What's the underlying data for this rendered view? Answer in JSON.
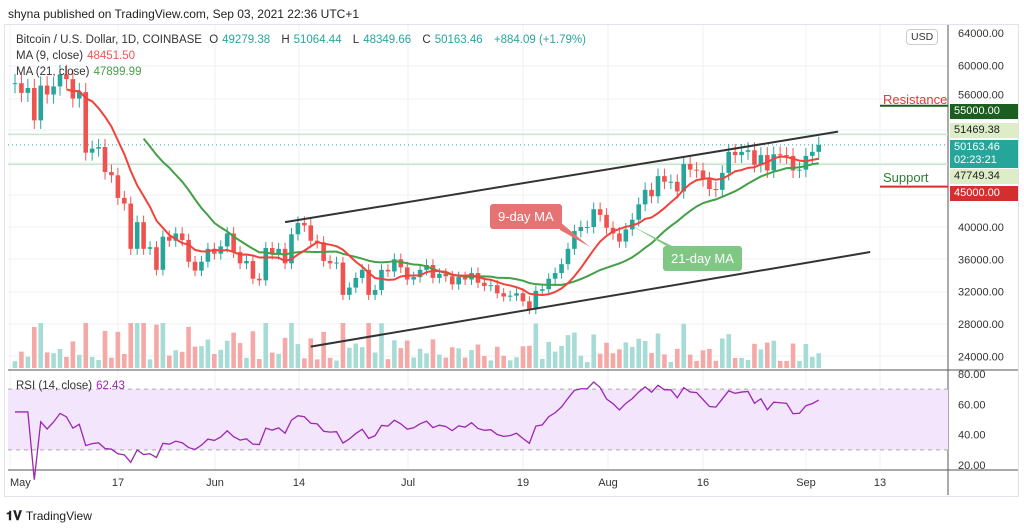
{
  "header": {
    "published": "shyna published on TradingView.com, Sep 03, 2021 22:36 UTC+1"
  },
  "legend": {
    "symbol": "Bitcoin / U.S. Dollar, 1D, COINBASE",
    "o_label": "O",
    "o": "49279.38",
    "h_label": "H",
    "h": "51064.44",
    "l_label": "L",
    "l": "48349.66",
    "c_label": "C",
    "c": "50163.46",
    "change": "+884.09 (+1.79%)",
    "ma9_label": "MA (9, close)",
    "ma9": "48451.50",
    "ma21_label": "MA (21, close)",
    "ma21": "47899.99",
    "rsi_label": "RSI (14, close)",
    "rsi": "62.43"
  },
  "price_axis": {
    "currency": "USD",
    "ticks": [
      "64000.00",
      "60000.00",
      "56000.00",
      "40000.00",
      "36000.00",
      "32000.00",
      "28000.00",
      "24000.00"
    ],
    "tick_values": [
      64000,
      60000,
      56000,
      40000,
      36000,
      32000,
      28000,
      24000
    ],
    "labels": {
      "resistance_level": "55000.00",
      "high_line": "51469.38",
      "last": "50163.46",
      "countdown": "02:23:21",
      "low_line": "47749.34",
      "support_level": "45000.00"
    }
  },
  "rsi_axis": {
    "ticks": [
      "80.00",
      "60.00",
      "40.00",
      "20.00"
    ]
  },
  "time_axis": [
    "May",
    "17",
    "Jun",
    "14",
    "Jul",
    "19",
    "Aug",
    "16",
    "Sep",
    "13"
  ],
  "annotations": {
    "resistance": "Resistance",
    "support": "Support",
    "ma9": "9-day MA",
    "ma21": "21-day MA"
  },
  "colors": {
    "up": "#26a69a",
    "down": "#ef5350",
    "ma9": "#f0433b",
    "ma21": "#43a047",
    "rsi": "#9c27b0",
    "resistance_line": "#1b5e20",
    "support_line": "#d32f2f"
  },
  "footer": {
    "brand": "TradingView"
  },
  "chart_data": {
    "type": "candlestick",
    "start_date": "2021-05-01",
    "first_open": 57700,
    "closes": [
      57800,
      56600,
      57200,
      53200,
      57500,
      56400,
      57400,
      58900,
      58300,
      55900,
      56700,
      49200,
      49700,
      49900,
      46800,
      46400,
      43600,
      42900,
      37300,
      40600,
      37300,
      37500,
      34700,
      38800,
      38300,
      39200,
      38400,
      35700,
      34600,
      35700,
      37300,
      36700,
      37600,
      39200,
      36900,
      35500,
      35800,
      33600,
      33400,
      37400,
      36700,
      37300,
      35500,
      39100,
      40500,
      40200,
      38300,
      38100,
      35800,
      35500,
      35600,
      31600,
      32500,
      33700,
      34700,
      31600,
      32200,
      34700,
      34500,
      36000,
      35000,
      33500,
      33800,
      34700,
      35300,
      33700,
      34200,
      33900,
      32900,
      33800,
      33500,
      34300,
      33100,
      32700,
      32800,
      31800,
      31400,
      31500,
      31800,
      30800,
      29800,
      32100,
      32300,
      33600,
      34300,
      35400,
      37300,
      39500,
      40000,
      40000,
      42200,
      41500,
      39900,
      39200,
      38200,
      39700,
      40900,
      42800,
      44600,
      43800,
      46300,
      45600,
      45600,
      44400,
      47800,
      47100,
      47000,
      45900,
      44700,
      44600,
      46700,
      49300,
      48900,
      49300,
      49500,
      47700,
      48900,
      47000,
      49000,
      48900,
      48800,
      47000,
      47100,
      48800,
      49300,
      50163
    ],
    "trendlines": [
      {
        "from": [
          "2021-06-12",
          40600
        ],
        "to": [
          "2021-09-06",
          51800
        ]
      },
      {
        "from": [
          "2021-06-16",
          25200
        ],
        "to": [
          "2021-09-11",
          36900
        ]
      }
    ],
    "levels": {
      "resistance": 55000,
      "support": 45000,
      "upper": 51469.38,
      "lower": 47749.34
    },
    "rsi_levels": [
      70,
      30
    ]
  }
}
